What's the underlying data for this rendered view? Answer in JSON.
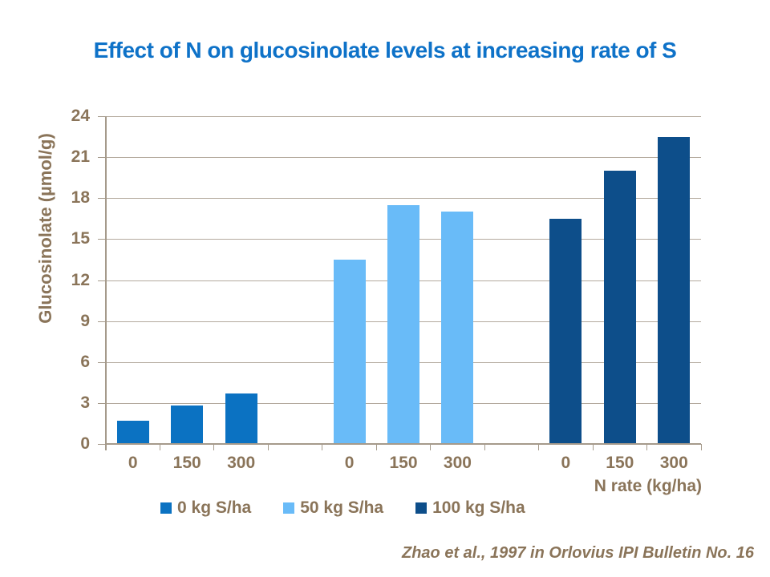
{
  "title": "Effect of N on glucosinolate levels at increasing rate of S",
  "citation": "Zhao et al., 1997 in Orlovius IPI Bulletin No. 16",
  "colors": {
    "title": "#0e72c8",
    "text": "#8a7459",
    "gridline": "#b4aa9e",
    "axis": "#a59a8b",
    "background": "#ffffff"
  },
  "chart_data": {
    "type": "bar",
    "title": "Effect of N on glucosinolate levels at increasing rate of S",
    "xlabel": "N rate (kg/ha)",
    "ylabel": "Glucosinolate (µmol/g)",
    "categories": [
      "0",
      "150",
      "300"
    ],
    "series": [
      {
        "name": "0 kg S/ha",
        "color": "#0b72c2",
        "values": [
          1.7,
          2.8,
          3.7
        ]
      },
      {
        "name": "50 kg S/ha",
        "color": "#69bbf8",
        "values": [
          13.5,
          17.5,
          17.0
        ]
      },
      {
        "name": "100 kg S/ha",
        "color": "#0d4e8a",
        "values": [
          16.5,
          20.0,
          22.5
        ]
      }
    ],
    "grouping": "bars grouped by series; each group shows N rates 0/150/300",
    "ylim": [
      0,
      24
    ],
    "ytick_step": 3,
    "grid": true,
    "legend_position": "bottom"
  }
}
